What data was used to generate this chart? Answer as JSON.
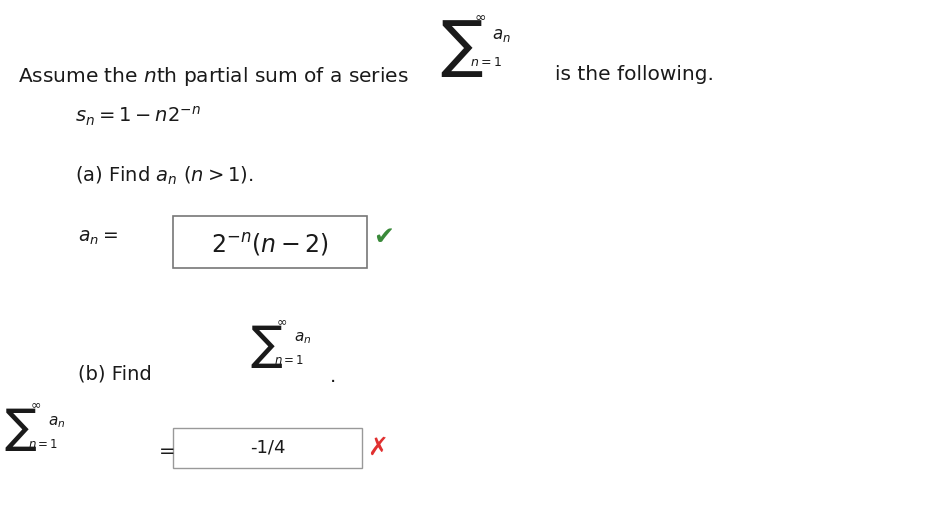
{
  "background_color": "#ffffff",
  "figsize": [
    9.32,
    5.16
  ],
  "dpi": 100
}
